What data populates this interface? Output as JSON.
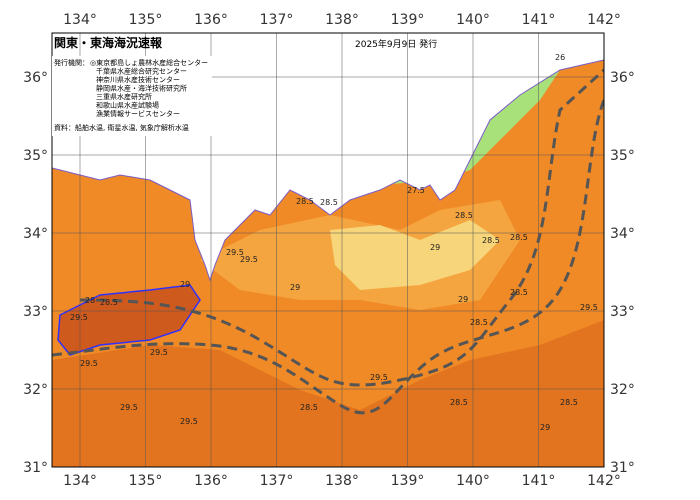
{
  "header": {
    "title": "関東・東海海況速報",
    "date": "2025年9月9日 発行"
  },
  "issuers": {
    "label": "発行機関：",
    "names": [
      "◎東京都島しょ農林水産総合センター",
      "千葉県水産総合研究センター",
      "神奈川県水産技術センター",
      "静岡県水産・海洋技術研究所",
      "三重県水産研究所",
      "和歌山県水産試験場",
      "漁業情報サービスセンター"
    ]
  },
  "source": "資料：船舶水温, 衛星水温, 気象庁解析水温",
  "map": {
    "lon_ticks": [
      {
        "value": 134,
        "label": "134°"
      },
      {
        "value": 135,
        "label": "135°"
      },
      {
        "value": 136,
        "label": "136°"
      },
      {
        "value": 137,
        "label": "137°"
      },
      {
        "value": 138,
        "label": "138°"
      },
      {
        "value": 139,
        "label": "139°"
      },
      {
        "value": 140,
        "label": "140°"
      },
      {
        "value": 141,
        "label": "141°"
      },
      {
        "value": 142,
        "label": "142°"
      }
    ],
    "lat_ticks": [
      {
        "value": 31,
        "label": "31°"
      },
      {
        "value": 32,
        "label": "32°"
      },
      {
        "value": 33,
        "label": "33°"
      },
      {
        "value": 34,
        "label": "34°"
      },
      {
        "value": 35,
        "label": "35°"
      },
      {
        "value": 36,
        "label": "36°"
      }
    ],
    "contour_labels": [
      "29",
      "28.5",
      "29.5",
      "28",
      "28.5",
      "29.5",
      "28.5",
      "27.5",
      "28.5",
      "28.5",
      "28.5",
      "29",
      "29.5",
      "29",
      "28.5",
      "28.5",
      "29.5",
      "29",
      "29.5",
      "28.5",
      "29.5",
      "29.5",
      "28.5",
      "29.5",
      "29.5",
      "28.5",
      "29",
      "26"
    ]
  }
}
